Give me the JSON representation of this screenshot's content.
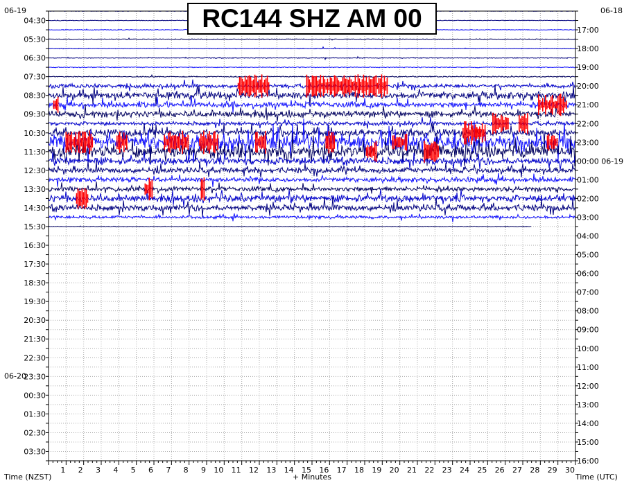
{
  "chart_data": {
    "type": "line",
    "title": "RC144 SHZ AM 00",
    "xlabel": "+ Minutes",
    "left_axis_label": "Time (NZST)",
    "right_axis_label": "Time (UTC)",
    "x_ticks": [
      "1",
      "2",
      "3",
      "4",
      "5",
      "6",
      "7",
      "8",
      "9",
      "10",
      "11",
      "12",
      "13",
      "14",
      "15",
      "16",
      "17",
      "18",
      "19",
      "20",
      "21",
      "22",
      "23",
      "24",
      "25",
      "26",
      "27",
      "28",
      "29",
      "30"
    ],
    "xlim": [
      0,
      30
    ],
    "row_count": 48,
    "left_date_labels": [
      {
        "text": "06-19",
        "at_row": 0
      },
      {
        "text": "06-20",
        "at_row": 39
      }
    ],
    "right_date_labels": [
      {
        "text": "06-18",
        "at_row": 0
      },
      {
        "text": "00:00 06-19",
        "at_row": 14
      }
    ],
    "left_time_labels": [
      "04:30",
      "05:30",
      "06:30",
      "07:30",
      "08:30",
      "09:30",
      "10:30",
      "11:30",
      "12:30",
      "13:30",
      "14:30",
      "15:30",
      "16:30",
      "17:30",
      "18:30",
      "19:30",
      "20:30",
      "21:30",
      "22:30",
      "23:30",
      "00:30",
      "01:30",
      "02:30",
      "03:30"
    ],
    "right_time_labels": [
      "17:00",
      "18:00",
      "19:00",
      "20:00",
      "21:00",
      "22:00",
      "23:00",
      "00:00 06-19",
      "01:00",
      "02:00",
      "03:00",
      "04:00",
      "05:00",
      "06:00",
      "07:00",
      "08:00",
      "09:00",
      "10:00",
      "11:00",
      "12:00",
      "13:00",
      "14:00",
      "15:00",
      "16:00"
    ],
    "trace_colors": [
      "#0000cc",
      "#000080",
      "#1010ff",
      "#000060"
    ],
    "event_color": "#ff0000",
    "trace_rows": [
      {
        "row": 0,
        "level": 0.04,
        "end": 30
      },
      {
        "row": 1,
        "level": 0.04,
        "end": 30
      },
      {
        "row": 2,
        "level": 0.05,
        "end": 30
      },
      {
        "row": 3,
        "level": 0.05,
        "end": 30
      },
      {
        "row": 4,
        "level": 0.05,
        "end": 30
      },
      {
        "row": 5,
        "level": 0.06,
        "end": 30
      },
      {
        "row": 6,
        "level": 0.06,
        "end": 30
      },
      {
        "row": 7,
        "level": 0.08,
        "end": 30
      },
      {
        "row": 8,
        "level": 0.25,
        "end": 30
      },
      {
        "row": 9,
        "level": 0.45,
        "end": 30
      },
      {
        "row": 10,
        "level": 0.35,
        "end": 30
      },
      {
        "row": 11,
        "level": 0.4,
        "end": 30
      },
      {
        "row": 12,
        "level": 0.25,
        "end": 30
      },
      {
        "row": 13,
        "level": 0.45,
        "end": 30
      },
      {
        "row": 14,
        "level": 0.85,
        "end": 30
      },
      {
        "row": 15,
        "level": 0.75,
        "end": 30
      },
      {
        "row": 16,
        "level": 0.45,
        "end": 30
      },
      {
        "row": 17,
        "level": 0.35,
        "end": 30
      },
      {
        "row": 18,
        "level": 0.3,
        "end": 30
      },
      {
        "row": 19,
        "level": 0.3,
        "end": 30
      },
      {
        "row": 20,
        "level": 0.45,
        "end": 30
      },
      {
        "row": 21,
        "level": 0.4,
        "end": 30
      },
      {
        "row": 22,
        "level": 0.2,
        "end": 30
      },
      {
        "row": 23,
        "level": 0.05,
        "end": 27.5
      }
    ],
    "events": [
      {
        "row": 8,
        "x": 10.8,
        "w": 1.8
      },
      {
        "row": 8,
        "x": 14.7,
        "w": 4.6
      },
      {
        "row": 13,
        "x": 24.3,
        "w": 0.6
      },
      {
        "row": 12,
        "x": 25.3,
        "w": 0.9
      },
      {
        "row": 12,
        "x": 26.8,
        "w": 0.5
      },
      {
        "row": 10,
        "x": 27.9,
        "w": 1.6
      },
      {
        "row": 10,
        "x": 0.3,
        "w": 0.3
      },
      {
        "row": 14,
        "x": 1.0,
        "w": 1.5
      },
      {
        "row": 14,
        "x": 3.9,
        "w": 0.6
      },
      {
        "row": 14,
        "x": 6.6,
        "w": 1.4
      },
      {
        "row": 14,
        "x": 8.6,
        "w": 1.1
      },
      {
        "row": 14,
        "x": 11.8,
        "w": 0.6
      },
      {
        "row": 14,
        "x": 15.8,
        "w": 0.5
      },
      {
        "row": 15,
        "x": 18.1,
        "w": 0.6
      },
      {
        "row": 14,
        "x": 19.6,
        "w": 0.8
      },
      {
        "row": 15,
        "x": 21.4,
        "w": 0.8
      },
      {
        "row": 13,
        "x": 23.6,
        "w": 1.0
      },
      {
        "row": 14,
        "x": 28.4,
        "w": 0.6
      },
      {
        "row": 19,
        "x": 5.5,
        "w": 0.4
      },
      {
        "row": 19,
        "x": 8.7,
        "w": 0.2
      },
      {
        "row": 20,
        "x": 1.6,
        "w": 0.7
      }
    ]
  }
}
